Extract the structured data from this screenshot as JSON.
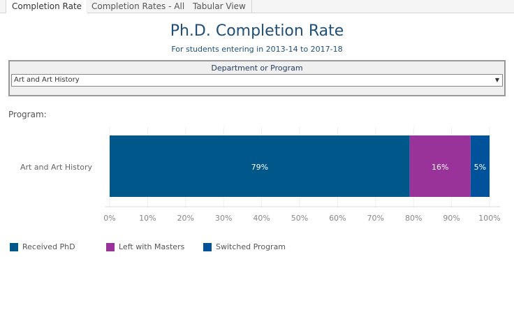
{
  "tabs": [
    {
      "label": "Completion Rate",
      "active": true
    },
    {
      "label": "Completion Rates - All"
    },
    {
      "label": "Tabular View"
    }
  ],
  "header": {
    "title": "Ph.D. Completion Rate",
    "subtitle": "For students entering in 2013-14 to 2017-18"
  },
  "filter": {
    "label": "Department or Program",
    "value": "Art and Art History",
    "icon": "dropdown-arrow-icon"
  },
  "program_label": "Program:",
  "chart_data": {
    "type": "bar",
    "orientation": "horizontal",
    "stacked": true,
    "categories": [
      "Art and Art History"
    ],
    "series": [
      {
        "name": "Received PhD",
        "values": [
          79
        ],
        "label": "79%",
        "color": "#00578a"
      },
      {
        "name": "Left with Masters",
        "values": [
          16
        ],
        "label": "16%",
        "color": "#993399"
      },
      {
        "name": "Switched Program",
        "values": [
          5
        ],
        "label": "5%",
        "color": "#00539b"
      }
    ],
    "xlim": [
      0,
      100
    ],
    "xticks": [
      "0%",
      "10%",
      "20%",
      "30%",
      "40%",
      "50%",
      "60%",
      "70%",
      "80%",
      "90%",
      "100%"
    ],
    "grid": true,
    "legend": "bottom-left"
  }
}
